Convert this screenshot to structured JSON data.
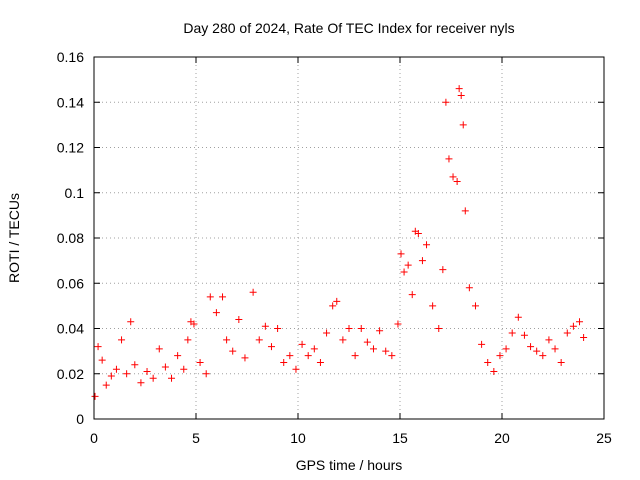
{
  "chart_data": {
    "type": "scatter",
    "title": "Day 280 of 2024, Rate Of TEC Index for receiver nyls",
    "xlabel": "GPS time / hours",
    "ylabel": "ROTI / TECUs",
    "xlim": [
      0,
      25
    ],
    "ylim": [
      0,
      0.16
    ],
    "xticks": [
      0,
      5,
      10,
      15,
      20,
      25
    ],
    "xtick_labels": [
      "0",
      "5",
      "10",
      "15",
      "20",
      "25"
    ],
    "yticks": [
      0,
      0.02,
      0.04,
      0.06,
      0.08,
      0.1,
      0.12,
      0.14,
      0.16
    ],
    "ytick_labels": [
      "0",
      "0.02",
      "0.04",
      "0.06",
      "0.08",
      "0.1",
      "0.12",
      "0.14",
      "0.16"
    ],
    "grid": true,
    "marker": "+",
    "series_color": "#ff0000",
    "series": [
      {
        "name": "ROTI",
        "x": [
          0.05,
          0.2,
          0.4,
          0.6,
          0.85,
          1.1,
          1.35,
          1.6,
          1.8,
          2.0,
          2.3,
          2.6,
          2.9,
          3.2,
          3.5,
          3.8,
          4.1,
          4.4,
          4.6,
          4.75,
          4.9,
          5.2,
          5.5,
          5.7,
          6.0,
          6.3,
          6.5,
          6.8,
          7.1,
          7.4,
          7.8,
          8.1,
          8.4,
          8.7,
          9.0,
          9.3,
          9.6,
          9.9,
          10.2,
          10.5,
          10.8,
          11.1,
          11.4,
          11.7,
          11.9,
          12.2,
          12.5,
          12.8,
          13.1,
          13.4,
          13.7,
          14.0,
          14.3,
          14.6,
          14.9,
          15.05,
          15.2,
          15.4,
          15.6,
          15.75,
          15.9,
          16.1,
          16.3,
          16.6,
          16.9,
          17.1,
          17.25,
          17.4,
          17.6,
          17.8,
          17.9,
          18.0,
          18.1,
          18.2,
          18.4,
          18.7,
          19.0,
          19.3,
          19.6,
          19.9,
          20.2,
          20.5,
          20.8,
          21.1,
          21.4,
          21.7,
          22.0,
          22.3,
          22.6,
          22.9,
          23.2,
          23.5,
          23.8,
          24.0
        ],
        "y": [
          0.01,
          0.032,
          0.026,
          0.015,
          0.019,
          0.022,
          0.035,
          0.02,
          0.043,
          0.024,
          0.016,
          0.021,
          0.018,
          0.031,
          0.023,
          0.018,
          0.028,
          0.022,
          0.035,
          0.043,
          0.042,
          0.025,
          0.02,
          0.054,
          0.047,
          0.054,
          0.035,
          0.03,
          0.044,
          0.027,
          0.056,
          0.035,
          0.041,
          0.032,
          0.04,
          0.025,
          0.028,
          0.022,
          0.033,
          0.028,
          0.031,
          0.025,
          0.038,
          0.05,
          0.052,
          0.035,
          0.04,
          0.028,
          0.04,
          0.034,
          0.031,
          0.039,
          0.03,
          0.028,
          0.042,
          0.073,
          0.065,
          0.068,
          0.055,
          0.083,
          0.082,
          0.07,
          0.077,
          0.05,
          0.04,
          0.066,
          0.14,
          0.115,
          0.107,
          0.105,
          0.146,
          0.143,
          0.13,
          0.092,
          0.058,
          0.05,
          0.033,
          0.025,
          0.021,
          0.028,
          0.031,
          0.038,
          0.045,
          0.037,
          0.032,
          0.03,
          0.028,
          0.035,
          0.031,
          0.025,
          0.038,
          0.041,
          0.043,
          0.036
        ]
      }
    ]
  }
}
